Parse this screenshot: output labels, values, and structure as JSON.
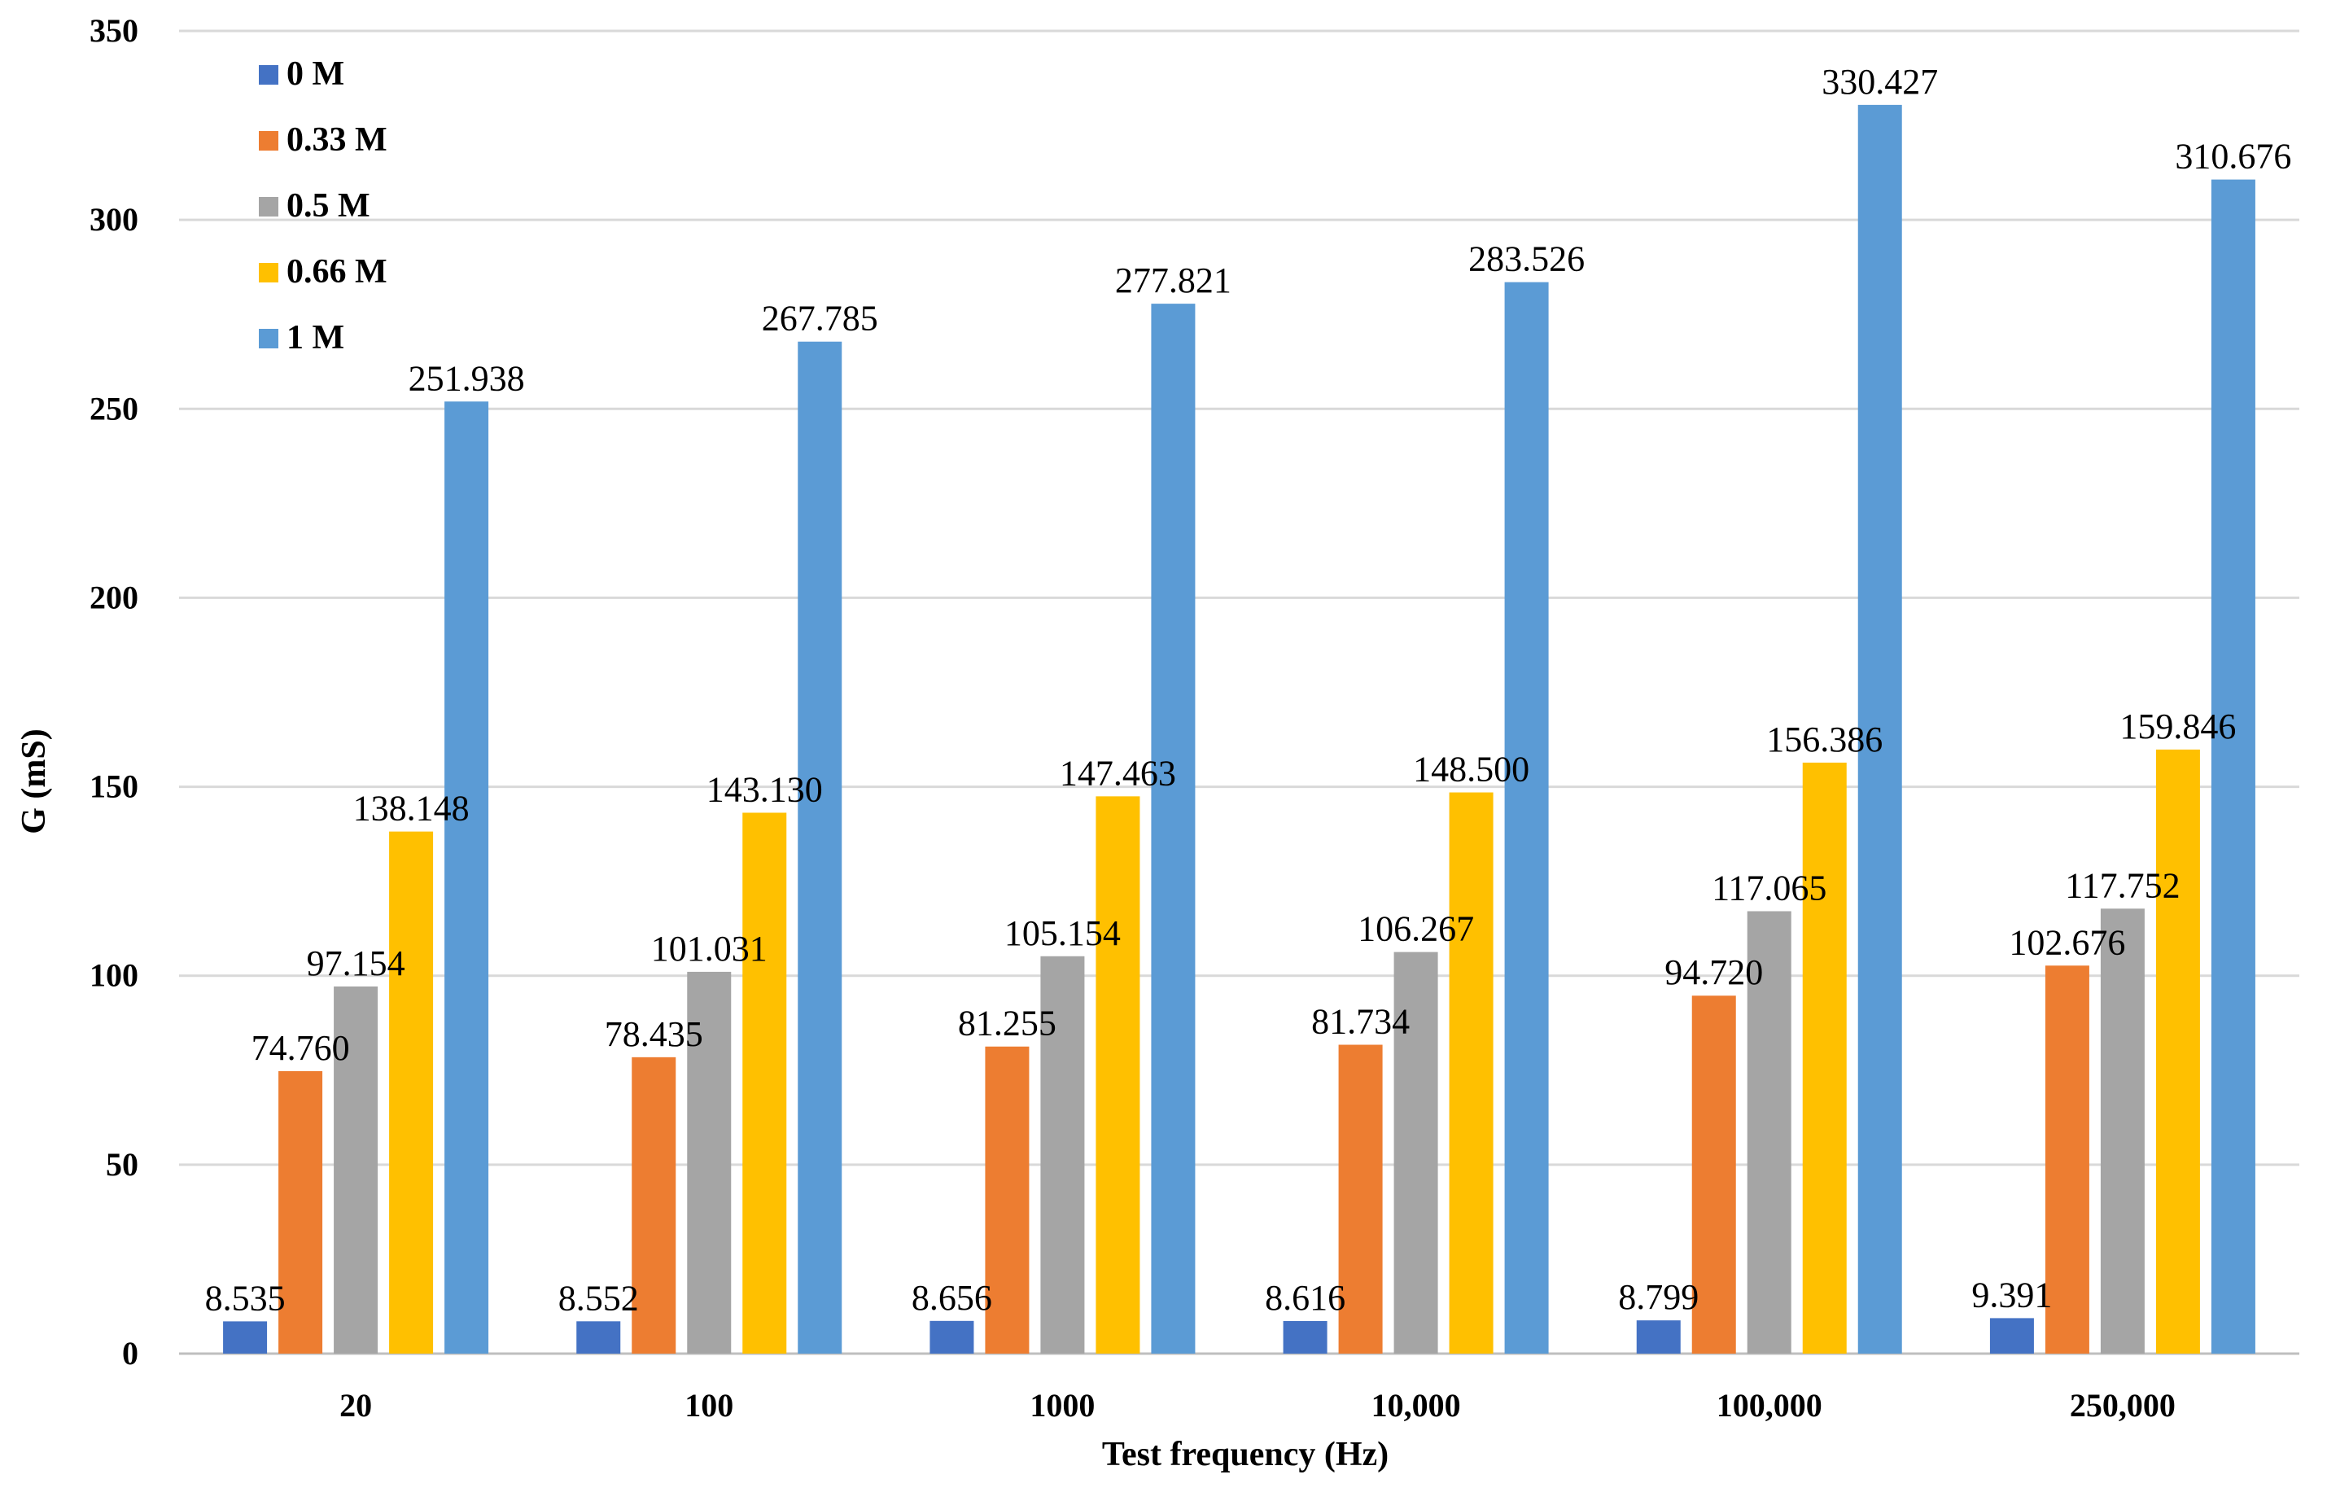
{
  "chart_data": {
    "type": "bar",
    "title": "",
    "xlabel": "Test frequency (Hz)",
    "ylabel": "G (mS)",
    "ylim": [
      0,
      350
    ],
    "yticks": [
      0,
      50,
      100,
      150,
      200,
      250,
      300,
      350
    ],
    "grid": true,
    "legend_position": "top-left",
    "categories": [
      "20",
      "100",
      "1000",
      "10,000",
      "100,000",
      "250,000"
    ],
    "series": [
      {
        "name": "0 M",
        "color": "#4472C4",
        "values": [
          8.535,
          8.552,
          8.656,
          8.616,
          8.799,
          9.391
        ],
        "labels": [
          "8.535",
          "8.552",
          "8.656",
          "8.616",
          "8.799",
          "9.391"
        ]
      },
      {
        "name": "0.33 M",
        "color": "#ED7D31",
        "values": [
          74.76,
          78.435,
          81.255,
          81.734,
          94.72,
          102.676
        ],
        "labels": [
          "74.760",
          "78.435",
          "81.255",
          "81.734",
          "94.720",
          "102.676"
        ]
      },
      {
        "name": "0.5 M",
        "color": "#A5A5A5",
        "values": [
          97.154,
          101.031,
          105.154,
          106.267,
          117.065,
          117.752
        ],
        "labels": [
          "97.154",
          "101.031",
          "105.154",
          "106.267",
          "117.065",
          "117.752"
        ]
      },
      {
        "name": "0.66 M",
        "color": "#FFC000",
        "values": [
          138.148,
          143.13,
          147.463,
          148.5,
          156.386,
          159.846
        ],
        "labels": [
          "138.148",
          "143.130",
          "147.463",
          "148.500",
          "156.386",
          "159.846"
        ]
      },
      {
        "name": "1 M",
        "color": "#5B9BD5",
        "values": [
          251.938,
          267.785,
          277.821,
          283.526,
          330.427,
          310.676
        ],
        "labels": [
          "251.938",
          "267.785",
          "277.821",
          "283.526",
          "330.427",
          "310.676"
        ]
      }
    ]
  }
}
